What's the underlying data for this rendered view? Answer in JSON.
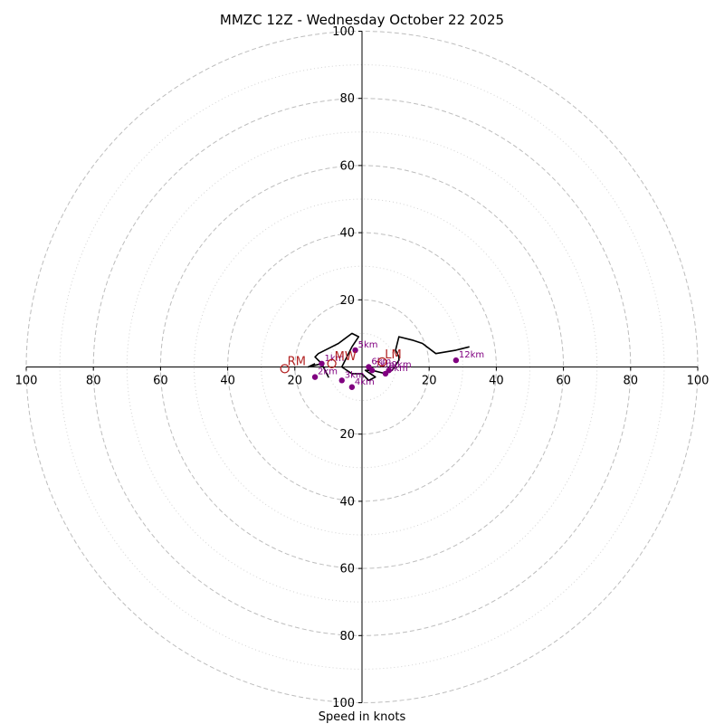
{
  "chart_data": {
    "type": "hodograph",
    "title": "MMZC 12Z - Wednesday October 22 2025",
    "xlabel": "Speed in knots",
    "xlim": [
      -100,
      100
    ],
    "ylim": [
      -100,
      100
    ],
    "grid": true,
    "rings_dashed": [
      20,
      40,
      60,
      80,
      100
    ],
    "rings_dotted": [
      10,
      30,
      50,
      70,
      90
    ],
    "x_tick_labels": [
      "100",
      "80",
      "60",
      "40",
      "20",
      "20",
      "40",
      "60",
      "80",
      "100"
    ],
    "y_tick_labels": [
      "100",
      "80",
      "60",
      "40",
      "20",
      "20",
      "40",
      "60",
      "80",
      "100"
    ],
    "hodograph_trace": [
      [
        -14,
        1
      ],
      [
        -16,
        0
      ],
      [
        -12,
        1
      ],
      [
        -10,
        -3
      ],
      [
        -12,
        1
      ],
      [
        -14,
        3
      ],
      [
        -13,
        4
      ],
      [
        -7,
        7
      ],
      [
        -3,
        10
      ],
      [
        -1,
        9
      ],
      [
        -3,
        6
      ],
      [
        -5,
        2
      ],
      [
        -6,
        0
      ],
      [
        -3,
        -2
      ],
      [
        0,
        -2
      ],
      [
        2,
        -4
      ],
      [
        4,
        -3
      ],
      [
        1,
        -1
      ],
      [
        3,
        -1
      ],
      [
        7,
        -2
      ],
      [
        9,
        -1
      ],
      [
        11,
        2
      ],
      [
        11,
        3
      ],
      [
        10,
        5
      ],
      [
        11,
        9
      ],
      [
        15,
        8
      ],
      [
        18,
        7
      ],
      [
        22,
        4
      ],
      [
        28,
        5
      ],
      [
        32,
        6
      ]
    ],
    "height_markers": [
      {
        "label": "1km",
        "u": -12,
        "v": 1
      },
      {
        "label": "2km",
        "u": -14,
        "v": -3
      },
      {
        "label": "3km",
        "u": -6,
        "v": -4
      },
      {
        "label": "4km",
        "u": -3,
        "v": -6
      },
      {
        "label": "5km",
        "u": -2,
        "v": 5
      },
      {
        "label": "6km",
        "u": 2,
        "v": 0
      },
      {
        "label": "7km",
        "u": 3,
        "v": -1
      },
      {
        "label": "8km",
        "u": 7,
        "v": -2
      },
      {
        "label": "9km",
        "u": 8,
        "v": -1
      },
      {
        "label": "12km",
        "u": 28,
        "v": 2
      }
    ],
    "storm_motion": [
      {
        "label": "RM",
        "u": -23,
        "v": -0.5
      },
      {
        "label": "MW",
        "u": -9,
        "v": 1
      },
      {
        "label": "LM",
        "u": 6,
        "v": 1.5
      }
    ],
    "colors": {
      "trace": "#000000",
      "markers": "#800080",
      "storm_motion": "#b22222",
      "grid": "#bdbdbd"
    }
  }
}
